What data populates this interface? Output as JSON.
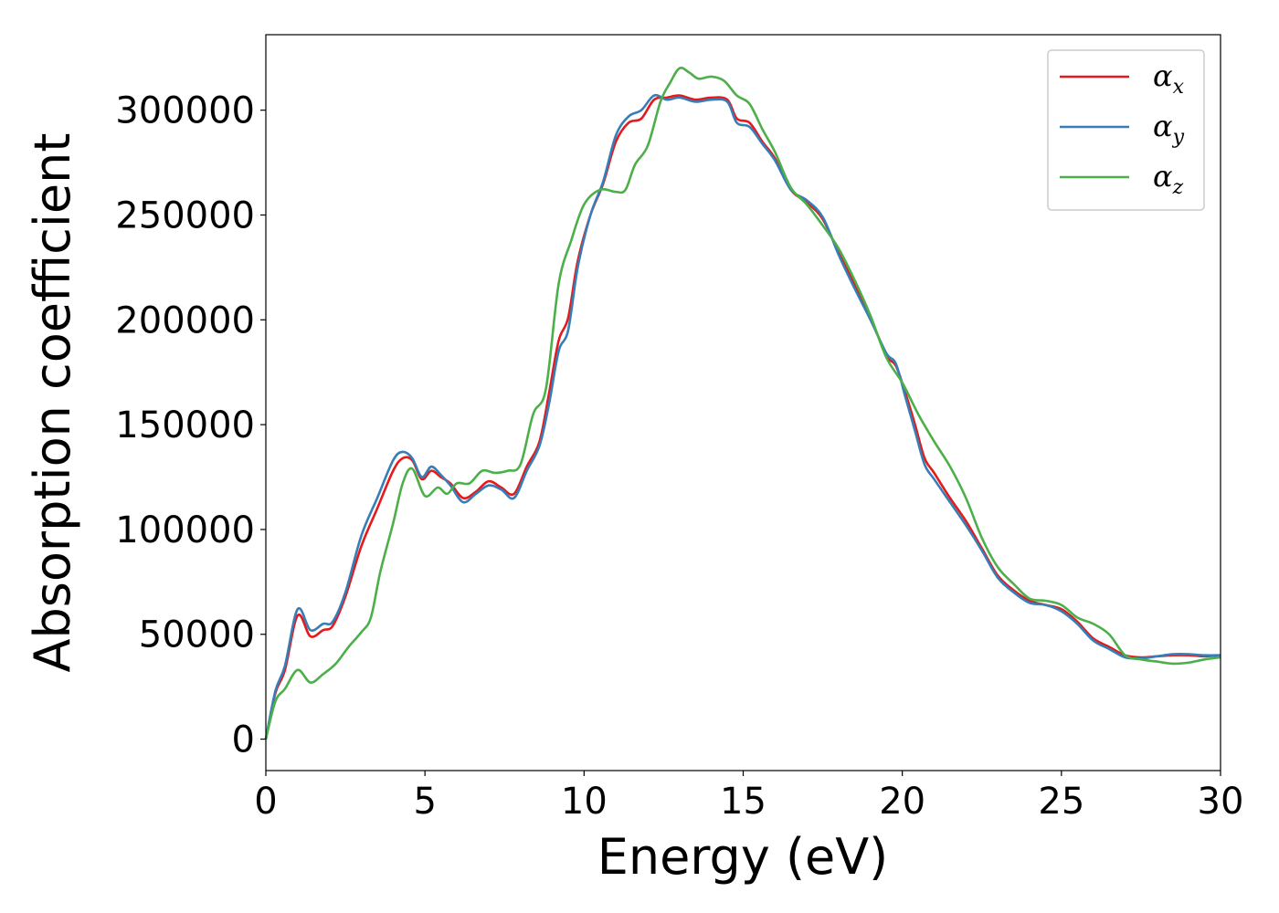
{
  "chart_data": {
    "type": "line",
    "title": "",
    "xlabel": "Energy (eV)",
    "ylabel": "Absorption coefficient",
    "xlim": [
      0,
      30
    ],
    "ylim": [
      -15000,
      336000
    ],
    "xticks": [
      0,
      5,
      10,
      15,
      20,
      25,
      30
    ],
    "yticks": [
      0,
      50000,
      100000,
      150000,
      200000,
      250000,
      300000
    ],
    "grid": false,
    "legend_position": "top-right",
    "series": [
      {
        "name": "α_x",
        "legend_main": "α",
        "legend_sub": "x",
        "color": "#e41a1c",
        "points": [
          [
            0,
            0
          ],
          [
            0.3,
            22000
          ],
          [
            0.6,
            33000
          ],
          [
            1.0,
            59000
          ],
          [
            1.4,
            49000
          ],
          [
            1.8,
            52000
          ],
          [
            2.1,
            54000
          ],
          [
            2.5,
            68000
          ],
          [
            3.0,
            92000
          ],
          [
            3.5,
            110000
          ],
          [
            4.0,
            128000
          ],
          [
            4.3,
            134000
          ],
          [
            4.6,
            133000
          ],
          [
            4.9,
            124000
          ],
          [
            5.2,
            128000
          ],
          [
            5.5,
            125000
          ],
          [
            5.8,
            122000
          ],
          [
            6.2,
            115000
          ],
          [
            6.6,
            118000
          ],
          [
            7.0,
            123000
          ],
          [
            7.4,
            120000
          ],
          [
            7.8,
            117000
          ],
          [
            8.2,
            130000
          ],
          [
            8.6,
            142000
          ],
          [
            8.9,
            165000
          ],
          [
            9.2,
            190000
          ],
          [
            9.5,
            201000
          ],
          [
            9.8,
            228000
          ],
          [
            10.2,
            250000
          ],
          [
            10.6,
            265000
          ],
          [
            11.0,
            285000
          ],
          [
            11.4,
            294000
          ],
          [
            11.8,
            296000
          ],
          [
            12.2,
            305000
          ],
          [
            12.6,
            306000
          ],
          [
            13.0,
            307000
          ],
          [
            13.5,
            305000
          ],
          [
            14.0,
            306000
          ],
          [
            14.5,
            305000
          ],
          [
            14.8,
            296000
          ],
          [
            15.2,
            294000
          ],
          [
            15.6,
            285000
          ],
          [
            16.0,
            277000
          ],
          [
            16.5,
            262000
          ],
          [
            17.0,
            256000
          ],
          [
            17.5,
            248000
          ],
          [
            18.0,
            232000
          ],
          [
            18.5,
            217000
          ],
          [
            19.0,
            201000
          ],
          [
            19.5,
            183000
          ],
          [
            19.8,
            178000
          ],
          [
            20.1,
            165000
          ],
          [
            20.4,
            150000
          ],
          [
            20.7,
            134000
          ],
          [
            21.0,
            127000
          ],
          [
            21.5,
            115000
          ],
          [
            22.0,
            104000
          ],
          [
            22.5,
            91000
          ],
          [
            23.0,
            78000
          ],
          [
            23.5,
            71000
          ],
          [
            24.0,
            66000
          ],
          [
            24.5,
            64000
          ],
          [
            25.0,
            62000
          ],
          [
            25.5,
            56000
          ],
          [
            26.0,
            48000
          ],
          [
            26.5,
            44000
          ],
          [
            27.0,
            40000
          ],
          [
            27.5,
            39000
          ],
          [
            28.0,
            39500
          ],
          [
            28.5,
            40000
          ],
          [
            29.0,
            40000
          ],
          [
            29.5,
            39500
          ],
          [
            30.0,
            40000
          ]
        ]
      },
      {
        "name": "α_y",
        "legend_main": "α",
        "legend_sub": "y",
        "color": "#377eb8",
        "points": [
          [
            0,
            0
          ],
          [
            0.3,
            23000
          ],
          [
            0.6,
            35000
          ],
          [
            1.0,
            62000
          ],
          [
            1.4,
            52000
          ],
          [
            1.8,
            55000
          ],
          [
            2.1,
            56000
          ],
          [
            2.5,
            70000
          ],
          [
            3.0,
            97000
          ],
          [
            3.5,
            115000
          ],
          [
            4.0,
            133000
          ],
          [
            4.3,
            137000
          ],
          [
            4.6,
            134000
          ],
          [
            4.9,
            125000
          ],
          [
            5.2,
            130000
          ],
          [
            5.5,
            126000
          ],
          [
            5.8,
            121000
          ],
          [
            6.2,
            113000
          ],
          [
            6.6,
            117000
          ],
          [
            7.0,
            121000
          ],
          [
            7.4,
            119000
          ],
          [
            7.8,
            115000
          ],
          [
            8.2,
            128000
          ],
          [
            8.6,
            140000
          ],
          [
            8.9,
            160000
          ],
          [
            9.2,
            185000
          ],
          [
            9.5,
            195000
          ],
          [
            9.8,
            225000
          ],
          [
            10.2,
            250000
          ],
          [
            10.6,
            266000
          ],
          [
            11.0,
            288000
          ],
          [
            11.4,
            297000
          ],
          [
            11.8,
            300000
          ],
          [
            12.2,
            307000
          ],
          [
            12.6,
            305000
          ],
          [
            13.0,
            306000
          ],
          [
            13.5,
            304000
          ],
          [
            14.0,
            305000
          ],
          [
            14.5,
            304000
          ],
          [
            14.8,
            294000
          ],
          [
            15.2,
            292000
          ],
          [
            15.6,
            284000
          ],
          [
            16.0,
            276000
          ],
          [
            16.5,
            262000
          ],
          [
            17.0,
            257000
          ],
          [
            17.5,
            249000
          ],
          [
            18.0,
            231000
          ],
          [
            18.5,
            215000
          ],
          [
            19.0,
            200000
          ],
          [
            19.5,
            184000
          ],
          [
            19.8,
            179000
          ],
          [
            20.1,
            163000
          ],
          [
            20.4,
            147000
          ],
          [
            20.7,
            131000
          ],
          [
            21.0,
            124000
          ],
          [
            21.5,
            113000
          ],
          [
            22.0,
            102000
          ],
          [
            22.5,
            90000
          ],
          [
            23.0,
            77000
          ],
          [
            23.5,
            70000
          ],
          [
            24.0,
            65000
          ],
          [
            24.5,
            64000
          ],
          [
            25.0,
            61000
          ],
          [
            25.5,
            55000
          ],
          [
            26.0,
            47000
          ],
          [
            26.5,
            43000
          ],
          [
            27.0,
            39000
          ],
          [
            27.5,
            38500
          ],
          [
            28.0,
            39500
          ],
          [
            28.5,
            40500
          ],
          [
            29.0,
            40500
          ],
          [
            29.5,
            40000
          ],
          [
            30.0,
            40000
          ]
        ]
      },
      {
        "name": "α_z",
        "legend_main": "α",
        "legend_sub": "z",
        "color": "#4daf4a",
        "points": [
          [
            0,
            0
          ],
          [
            0.3,
            18000
          ],
          [
            0.6,
            24000
          ],
          [
            1.0,
            33000
          ],
          [
            1.4,
            27000
          ],
          [
            1.8,
            31000
          ],
          [
            2.2,
            36000
          ],
          [
            2.6,
            44000
          ],
          [
            3.0,
            51000
          ],
          [
            3.3,
            58000
          ],
          [
            3.6,
            80000
          ],
          [
            4.0,
            103000
          ],
          [
            4.3,
            122000
          ],
          [
            4.6,
            129000
          ],
          [
            5.0,
            116000
          ],
          [
            5.4,
            120000
          ],
          [
            5.7,
            117000
          ],
          [
            6.0,
            122000
          ],
          [
            6.4,
            122000
          ],
          [
            6.8,
            128000
          ],
          [
            7.2,
            127000
          ],
          [
            7.6,
            128000
          ],
          [
            8.0,
            131000
          ],
          [
            8.4,
            155000
          ],
          [
            8.8,
            167000
          ],
          [
            9.2,
            217000
          ],
          [
            9.6,
            238000
          ],
          [
            10.0,
            255000
          ],
          [
            10.5,
            262000
          ],
          [
            11.0,
            261000
          ],
          [
            11.3,
            262000
          ],
          [
            11.6,
            274000
          ],
          [
            12.0,
            283000
          ],
          [
            12.4,
            304000
          ],
          [
            12.7,
            313000
          ],
          [
            13.0,
            320000
          ],
          [
            13.3,
            318000
          ],
          [
            13.6,
            315000
          ],
          [
            14.0,
            316000
          ],
          [
            14.4,
            314000
          ],
          [
            14.8,
            307000
          ],
          [
            15.2,
            303000
          ],
          [
            15.6,
            291000
          ],
          [
            16.0,
            280000
          ],
          [
            16.5,
            263000
          ],
          [
            17.0,
            255000
          ],
          [
            17.5,
            245000
          ],
          [
            18.0,
            234000
          ],
          [
            18.5,
            219000
          ],
          [
            19.0,
            202000
          ],
          [
            19.5,
            182000
          ],
          [
            20.0,
            170000
          ],
          [
            20.5,
            155000
          ],
          [
            21.0,
            142000
          ],
          [
            21.5,
            130000
          ],
          [
            22.0,
            115000
          ],
          [
            22.5,
            96000
          ],
          [
            23.0,
            82000
          ],
          [
            23.5,
            74000
          ],
          [
            24.0,
            67000
          ],
          [
            24.5,
            66000
          ],
          [
            25.0,
            64000
          ],
          [
            25.5,
            58000
          ],
          [
            26.0,
            55000
          ],
          [
            26.5,
            50000
          ],
          [
            27.0,
            40000
          ],
          [
            27.5,
            38000
          ],
          [
            28.0,
            37000
          ],
          [
            28.5,
            36000
          ],
          [
            29.0,
            36500
          ],
          [
            29.5,
            38000
          ],
          [
            30.0,
            39000
          ]
        ]
      }
    ]
  }
}
